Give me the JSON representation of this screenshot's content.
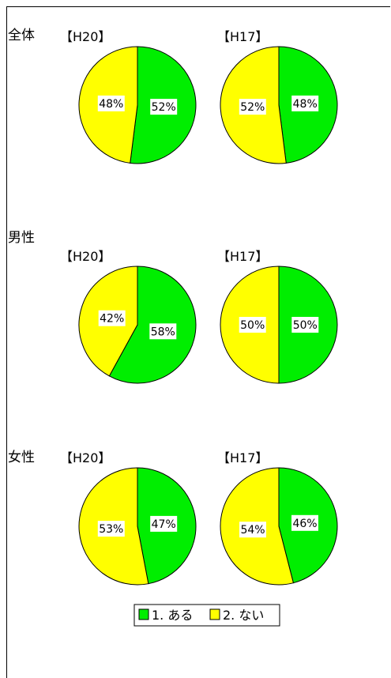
{
  "chart_data": [
    {
      "type": "pie",
      "group": "全体",
      "title": "【H20】",
      "categories": [
        "1. ある",
        "2. ない"
      ],
      "values": [
        52,
        48
      ],
      "labels": [
        "52%",
        "48%"
      ]
    },
    {
      "type": "pie",
      "group": "全体",
      "title": "【H17】",
      "categories": [
        "1. ある",
        "2. ない"
      ],
      "values": [
        48,
        52
      ],
      "labels": [
        "48%",
        "52%"
      ]
    },
    {
      "type": "pie",
      "group": "男性",
      "title": "【H20】",
      "categories": [
        "1. ある",
        "2. ない"
      ],
      "values": [
        58,
        42
      ],
      "labels": [
        "58%",
        "42%"
      ]
    },
    {
      "type": "pie",
      "group": "男性",
      "title": "【H17】",
      "categories": [
        "1. ある",
        "2. ない"
      ],
      "values": [
        50,
        50
      ],
      "labels": [
        "50%",
        "50%"
      ]
    },
    {
      "type": "pie",
      "group": "女性",
      "title": "【H20】",
      "categories": [
        "1. ある",
        "2. ない"
      ],
      "values": [
        47,
        53
      ],
      "labels": [
        "47%",
        "53%"
      ]
    },
    {
      "type": "pie",
      "group": "女性",
      "title": "【H17】",
      "categories": [
        "1. ある",
        "2. ない"
      ],
      "values": [
        46,
        54
      ],
      "labels": [
        "46%",
        "54%"
      ]
    }
  ],
  "groups": [
    "全体",
    "男性",
    "女性"
  ],
  "legend": {
    "position": "bottom",
    "items": [
      {
        "label": "1. ある",
        "color": "#00ee00"
      },
      {
        "label": "2. ない",
        "color": "#ffff00"
      }
    ]
  },
  "colors": {
    "aru": "#00ee00",
    "nai": "#ffff00"
  }
}
